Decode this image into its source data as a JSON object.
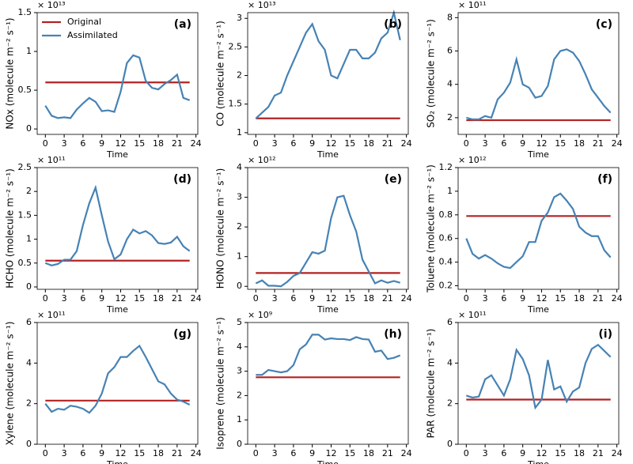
{
  "chart_data": [
    {
      "type": "line",
      "panel_label": "(a)",
      "offset_text": "× 10¹³",
      "ylabel": "NOx (molecule m⁻² s⁻¹)",
      "xlabel": "Time",
      "legend": "upper left",
      "x": [
        0,
        1,
        2,
        3,
        4,
        5,
        6,
        7,
        8,
        9,
        10,
        11,
        12,
        13,
        14,
        15,
        16,
        17,
        18,
        19,
        20,
        21,
        22,
        23
      ],
      "xlim": [
        -1.3,
        24.3
      ],
      "xticks": [
        0,
        3,
        6,
        9,
        12,
        15,
        18,
        21,
        24
      ],
      "ylim": [
        -0.07,
        1.5
      ],
      "yticks": [
        0,
        0.5,
        1,
        1.5
      ],
      "series": [
        {
          "name": "Original",
          "color": "#b22222",
          "values": [
            0.6,
            0.6,
            0.6,
            0.6,
            0.6,
            0.6,
            0.6,
            0.6,
            0.6,
            0.6,
            0.6,
            0.6,
            0.6,
            0.6,
            0.6,
            0.6,
            0.6,
            0.6,
            0.6,
            0.6,
            0.6,
            0.6,
            0.6,
            0.6
          ]
        },
        {
          "name": "Assimilated",
          "color": "#4682b4",
          "values": [
            0.3,
            0.17,
            0.14,
            0.15,
            0.14,
            0.25,
            0.33,
            0.4,
            0.35,
            0.23,
            0.24,
            0.22,
            0.48,
            0.85,
            0.95,
            0.92,
            0.62,
            0.53,
            0.51,
            0.58,
            0.63,
            0.7,
            0.4,
            0.37
          ]
        }
      ]
    },
    {
      "type": "line",
      "panel_label": "(b)",
      "offset_text": "× 10¹³",
      "ylabel": "CO (molecule m⁻² s⁻¹)",
      "xlabel": "Time",
      "x": [
        0,
        1,
        2,
        3,
        4,
        5,
        6,
        7,
        8,
        9,
        10,
        11,
        12,
        13,
        14,
        15,
        16,
        17,
        18,
        19,
        20,
        21,
        22,
        23
      ],
      "xlim": [
        -1.3,
        24.3
      ],
      "xticks": [
        0,
        3,
        6,
        9,
        12,
        15,
        18,
        21,
        24
      ],
      "ylim": [
        0.97,
        3.1
      ],
      "yticks": [
        1,
        1.5,
        2,
        2.5,
        3
      ],
      "series": [
        {
          "color": "#b22222",
          "values": [
            1.25,
            1.25,
            1.25,
            1.25,
            1.25,
            1.25,
            1.25,
            1.25,
            1.25,
            1.25,
            1.25,
            1.25,
            1.25,
            1.25,
            1.25,
            1.25,
            1.25,
            1.25,
            1.25,
            1.25,
            1.25,
            1.25,
            1.25,
            1.25
          ]
        },
        {
          "color": "#4682b4",
          "values": [
            1.25,
            1.35,
            1.45,
            1.65,
            1.7,
            2.0,
            2.25,
            2.5,
            2.75,
            2.9,
            2.6,
            2.45,
            2.0,
            1.95,
            2.2,
            2.45,
            2.45,
            2.3,
            2.3,
            2.4,
            2.65,
            2.75,
            3.1,
            2.62
          ]
        }
      ]
    },
    {
      "type": "line",
      "panel_label": "(c)",
      "offset_text": "× 10¹¹",
      "ylabel": "SO₂ (molecule m⁻² s⁻¹)",
      "xlabel": "Time",
      "x": [
        0,
        1,
        2,
        3,
        4,
        5,
        6,
        7,
        8,
        9,
        10,
        11,
        12,
        13,
        14,
        15,
        16,
        17,
        18,
        19,
        20,
        21,
        22,
        23
      ],
      "xlim": [
        -1.3,
        24.3
      ],
      "xticks": [
        0,
        3,
        6,
        9,
        12,
        15,
        18,
        21,
        24
      ],
      "ylim": [
        1,
        8.3
      ],
      "yticks": [
        2,
        4,
        6,
        8
      ],
      "series": [
        {
          "color": "#b22222",
          "values": [
            1.85,
            1.85,
            1.85,
            1.85,
            1.85,
            1.85,
            1.85,
            1.85,
            1.85,
            1.85,
            1.85,
            1.85,
            1.85,
            1.85,
            1.85,
            1.85,
            1.85,
            1.85,
            1.85,
            1.85,
            1.85,
            1.85,
            1.85,
            1.85
          ]
        },
        {
          "color": "#4682b4",
          "values": [
            2.0,
            1.9,
            1.9,
            2.1,
            2.0,
            3.1,
            3.5,
            4.1,
            5.5,
            4.0,
            3.8,
            3.2,
            3.3,
            3.9,
            5.5,
            6.0,
            6.1,
            5.9,
            5.4,
            4.6,
            3.7,
            3.2,
            2.7,
            2.3
          ]
        }
      ]
    },
    {
      "type": "line",
      "panel_label": "(d)",
      "offset_text": "× 10¹¹",
      "ylabel": "HCHO (molecule m⁻² s⁻¹)",
      "xlabel": "Time",
      "x": [
        0,
        1,
        2,
        3,
        4,
        5,
        6,
        7,
        8,
        9,
        10,
        11,
        12,
        13,
        14,
        15,
        16,
        17,
        18,
        19,
        20,
        21,
        22,
        23
      ],
      "xlim": [
        -1.3,
        24.3
      ],
      "xticks": [
        0,
        3,
        6,
        9,
        12,
        15,
        18,
        21,
        24
      ],
      "ylim": [
        -0.05,
        2.5
      ],
      "yticks": [
        0,
        0.5,
        1,
        1.5,
        2,
        2.5
      ],
      "series": [
        {
          "color": "#b22222",
          "values": [
            0.55,
            0.55,
            0.55,
            0.55,
            0.55,
            0.55,
            0.55,
            0.55,
            0.55,
            0.55,
            0.55,
            0.55,
            0.55,
            0.55,
            0.55,
            0.55,
            0.55,
            0.55,
            0.55,
            0.55,
            0.55,
            0.55,
            0.55,
            0.55
          ]
        },
        {
          "color": "#4682b4",
          "values": [
            0.5,
            0.45,
            0.48,
            0.57,
            0.57,
            0.75,
            1.3,
            1.75,
            2.08,
            1.5,
            0.95,
            0.58,
            0.68,
            1.0,
            1.2,
            1.12,
            1.17,
            1.08,
            0.92,
            0.9,
            0.93,
            1.05,
            0.85,
            0.75
          ]
        }
      ]
    },
    {
      "type": "line",
      "panel_label": "(e)",
      "offset_text": "× 10¹²",
      "ylabel": "HONO (molecule m⁻² s⁻¹)",
      "xlabel": "Time",
      "x": [
        0,
        1,
        2,
        3,
        4,
        5,
        6,
        7,
        8,
        9,
        10,
        11,
        12,
        13,
        14,
        15,
        16,
        17,
        18,
        19,
        20,
        21,
        22,
        23
      ],
      "xlim": [
        -1.3,
        24.3
      ],
      "xticks": [
        0,
        3,
        6,
        9,
        12,
        15,
        18,
        21,
        24
      ],
      "ylim": [
        -0.1,
        4
      ],
      "yticks": [
        0,
        1,
        2,
        3,
        4
      ],
      "series": [
        {
          "color": "#b22222",
          "values": [
            0.45,
            0.45,
            0.45,
            0.45,
            0.45,
            0.45,
            0.45,
            0.45,
            0.45,
            0.45,
            0.45,
            0.45,
            0.45,
            0.45,
            0.45,
            0.45,
            0.45,
            0.45,
            0.45,
            0.45,
            0.45,
            0.45,
            0.45,
            0.45
          ]
        },
        {
          "color": "#4682b4",
          "values": [
            0.1,
            0.2,
            0.02,
            0.02,
            0.0,
            0.15,
            0.35,
            0.45,
            0.8,
            1.15,
            1.1,
            1.2,
            2.3,
            3.0,
            3.05,
            2.4,
            1.85,
            0.9,
            0.5,
            0.1,
            0.2,
            0.12,
            0.18,
            0.12
          ]
        }
      ]
    },
    {
      "type": "line",
      "panel_label": "(f)",
      "offset_text": "× 10¹²",
      "ylabel": "Toluene (molecule m⁻² s⁻¹)",
      "xlabel": "Time",
      "x": [
        0,
        1,
        2,
        3,
        4,
        5,
        6,
        7,
        8,
        9,
        10,
        11,
        12,
        13,
        14,
        15,
        16,
        17,
        18,
        19,
        20,
        21,
        22,
        23
      ],
      "xlim": [
        -1.3,
        24.3
      ],
      "xticks": [
        0,
        3,
        6,
        9,
        12,
        15,
        18,
        21,
        24
      ],
      "ylim": [
        0.17,
        1.2
      ],
      "yticks": [
        0.2,
        0.4,
        0.6,
        0.8,
        1,
        1.2
      ],
      "series": [
        {
          "color": "#b22222",
          "values": [
            0.79,
            0.79,
            0.79,
            0.79,
            0.79,
            0.79,
            0.79,
            0.79,
            0.79,
            0.79,
            0.79,
            0.79,
            0.79,
            0.79,
            0.79,
            0.79,
            0.79,
            0.79,
            0.79,
            0.79,
            0.79,
            0.79,
            0.79,
            0.79
          ]
        },
        {
          "color": "#4682b4",
          "values": [
            0.6,
            0.47,
            0.43,
            0.46,
            0.43,
            0.39,
            0.36,
            0.35,
            0.4,
            0.45,
            0.57,
            0.57,
            0.75,
            0.82,
            0.95,
            0.98,
            0.92,
            0.85,
            0.7,
            0.65,
            0.62,
            0.62,
            0.5,
            0.44
          ]
        }
      ]
    },
    {
      "type": "line",
      "panel_label": "(g)",
      "offset_text": "× 10¹¹",
      "ylabel": "Xylene (molecule m⁻² s⁻¹)",
      "xlabel": "Time",
      "x": [
        0,
        1,
        2,
        3,
        4,
        5,
        6,
        7,
        8,
        9,
        10,
        11,
        12,
        13,
        14,
        15,
        16,
        17,
        18,
        19,
        20,
        21,
        22,
        23
      ],
      "xlim": [
        -1.3,
        24.3
      ],
      "xticks": [
        0,
        3,
        6,
        9,
        12,
        15,
        18,
        21,
        24
      ],
      "ylim": [
        0,
        6
      ],
      "yticks": [
        0,
        2,
        4,
        6
      ],
      "series": [
        {
          "color": "#b22222",
          "values": [
            2.15,
            2.15,
            2.15,
            2.15,
            2.15,
            2.15,
            2.15,
            2.15,
            2.15,
            2.15,
            2.15,
            2.15,
            2.15,
            2.15,
            2.15,
            2.15,
            2.15,
            2.15,
            2.15,
            2.15,
            2.15,
            2.15,
            2.15,
            2.15
          ]
        },
        {
          "color": "#4682b4",
          "values": [
            2.0,
            1.6,
            1.75,
            1.7,
            1.9,
            1.85,
            1.75,
            1.55,
            1.9,
            2.5,
            3.5,
            3.8,
            4.3,
            4.3,
            4.6,
            4.85,
            4.3,
            3.7,
            3.1,
            2.95,
            2.5,
            2.2,
            2.1,
            1.95
          ]
        }
      ]
    },
    {
      "type": "line",
      "panel_label": "(h)",
      "offset_text": "× 10⁹",
      "ylabel": "Isoprene (molecule m⁻² s⁻¹)",
      "xlabel": "Time",
      "x": [
        0,
        1,
        2,
        3,
        4,
        5,
        6,
        7,
        8,
        9,
        10,
        11,
        12,
        13,
        14,
        15,
        16,
        17,
        18,
        19,
        20,
        21,
        22,
        23
      ],
      "xlim": [
        -1.3,
        24.3
      ],
      "xticks": [
        0,
        3,
        6,
        9,
        12,
        15,
        18,
        21,
        24
      ],
      "ylim": [
        0,
        5
      ],
      "yticks": [
        0,
        1,
        2,
        3,
        4,
        5
      ],
      "series": [
        {
          "color": "#b22222",
          "values": [
            2.75,
            2.75,
            2.75,
            2.75,
            2.75,
            2.75,
            2.75,
            2.75,
            2.75,
            2.75,
            2.75,
            2.75,
            2.75,
            2.75,
            2.75,
            2.75,
            2.75,
            2.75,
            2.75,
            2.75,
            2.75,
            2.75,
            2.75,
            2.75
          ]
        },
        {
          "color": "#4682b4",
          "values": [
            2.85,
            2.85,
            3.05,
            3.0,
            2.95,
            3.0,
            3.25,
            3.9,
            4.1,
            4.5,
            4.5,
            4.3,
            4.35,
            4.32,
            4.32,
            4.28,
            4.4,
            4.32,
            4.3,
            3.8,
            3.85,
            3.5,
            3.55,
            3.65
          ]
        }
      ]
    },
    {
      "type": "line",
      "panel_label": "(i)",
      "offset_text": "× 10¹¹",
      "ylabel": "PAR (molecule m⁻² s⁻¹)",
      "xlabel": "Time",
      "x": [
        0,
        1,
        2,
        3,
        4,
        5,
        6,
        7,
        8,
        9,
        10,
        11,
        12,
        13,
        14,
        15,
        16,
        17,
        18,
        19,
        20,
        21,
        22,
        23
      ],
      "xlim": [
        -1.3,
        24.3
      ],
      "xticks": [
        0,
        3,
        6,
        9,
        12,
        15,
        18,
        21,
        24
      ],
      "ylim": [
        0,
        6
      ],
      "yticks": [
        0,
        2,
        4,
        6
      ],
      "series": [
        {
          "color": "#b22222",
          "values": [
            2.2,
            2.2,
            2.2,
            2.2,
            2.2,
            2.2,
            2.2,
            2.2,
            2.2,
            2.2,
            2.2,
            2.2,
            2.2,
            2.2,
            2.2,
            2.2,
            2.2,
            2.2,
            2.2,
            2.2,
            2.2,
            2.2,
            2.2,
            2.2
          ]
        },
        {
          "color": "#4682b4",
          "values": [
            2.4,
            2.3,
            2.35,
            3.2,
            3.4,
            2.9,
            2.4,
            3.2,
            4.65,
            4.2,
            3.4,
            1.8,
            2.2,
            4.15,
            2.7,
            2.85,
            2.1,
            2.6,
            2.8,
            4.0,
            4.7,
            4.9,
            4.6,
            4.3
          ]
        }
      ]
    }
  ]
}
